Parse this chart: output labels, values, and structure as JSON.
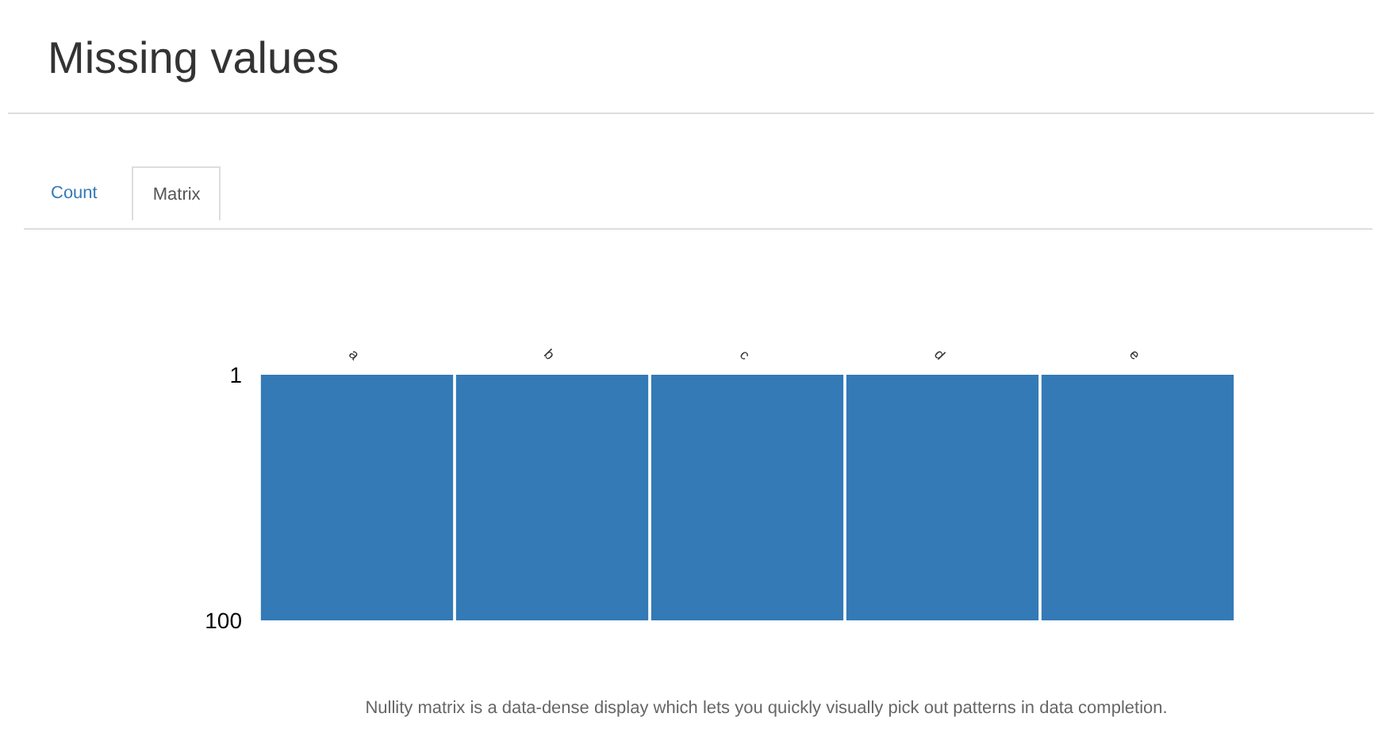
{
  "chart_data": {
    "type": "bar",
    "title": "Missing values",
    "categories": [
      "a",
      "b",
      "c",
      "d",
      "e"
    ],
    "base": [
      1,
      1,
      1,
      1,
      1
    ],
    "values": [
      99,
      99,
      99,
      99,
      99
    ],
    "color": "#337ab7",
    "ylim": [
      100,
      1
    ],
    "yticks": [
      1,
      100
    ],
    "annotations": [
      "Count",
      "Matrix",
      "Nullity matrix is a data-dense display which lets you quickly visually pick out patterns in data completion."
    ]
  }
}
